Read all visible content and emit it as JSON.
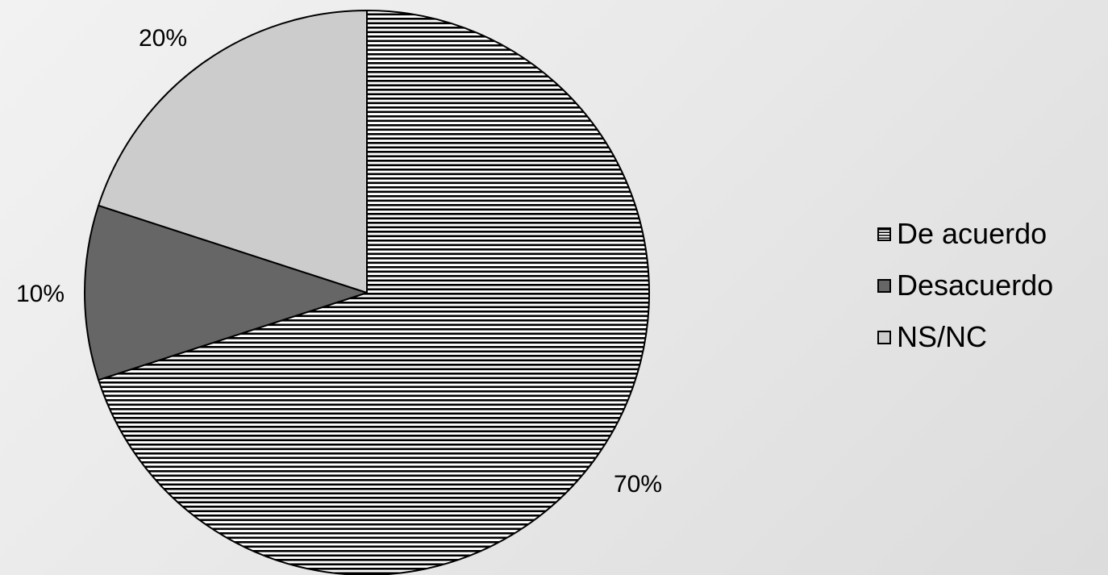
{
  "chart_data": {
    "type": "pie",
    "title": "",
    "slices": [
      {
        "label": "De acuerdo",
        "value": 70,
        "value_label": "70%",
        "fill": "hatch-horizontal"
      },
      {
        "label": "Desacuerdo",
        "value": 10,
        "value_label": "10%",
        "fill": "#666666"
      },
      {
        "label": "NS/NC",
        "value": 20,
        "value_label": "20%",
        "fill": "#cccccc"
      }
    ],
    "start_angle": "12 o'clock",
    "direction": "clockwise",
    "legend": {
      "position": "right",
      "items": [
        "De acuerdo",
        "Desacuerdo",
        "NS/NC"
      ]
    }
  }
}
